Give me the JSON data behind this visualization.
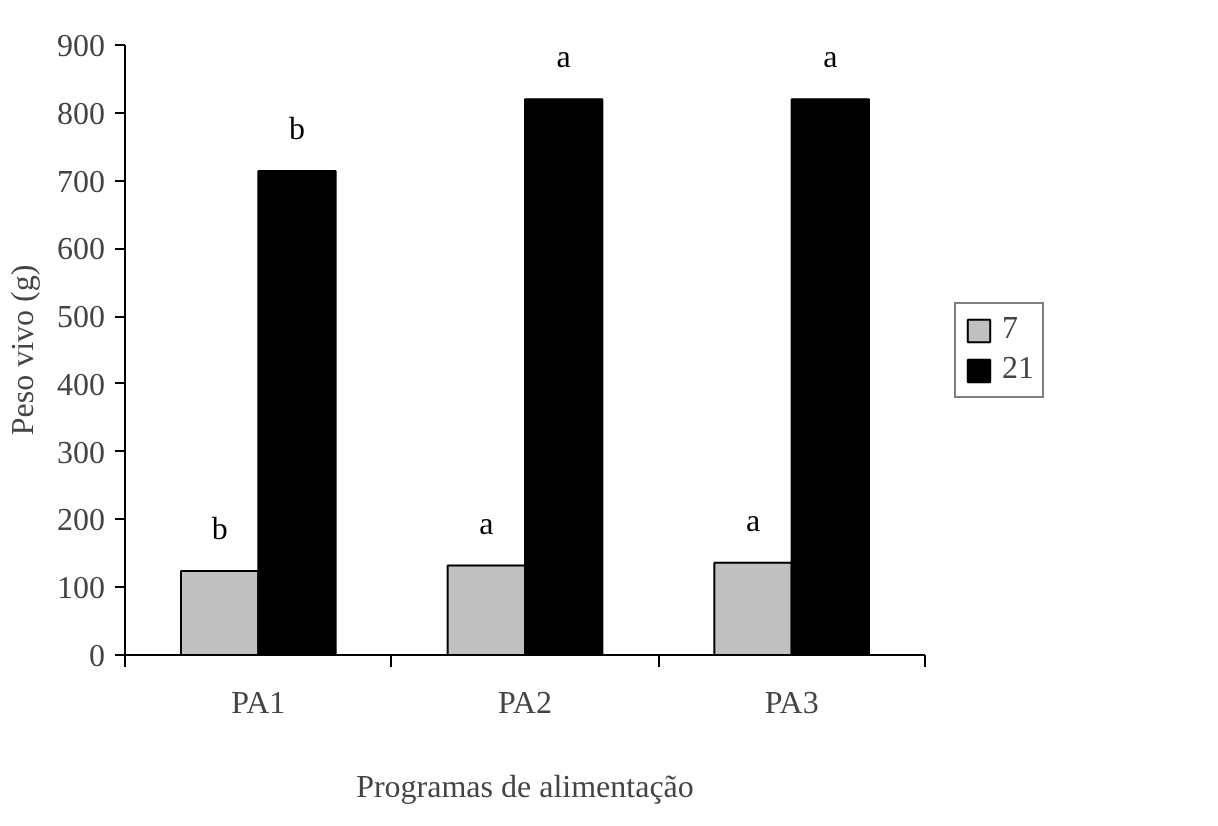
{
  "chart_data": {
    "type": "bar",
    "xlabel": "Programas de alimentação",
    "ylabel": "Peso vivo (g)",
    "categories": [
      "PA1",
      "PA2",
      "PA3"
    ],
    "series": [
      {
        "name": "7",
        "color": "#c0c0c0",
        "values": [
          124,
          132,
          136
        ],
        "value_labels": [
          "b",
          "a",
          "a"
        ]
      },
      {
        "name": "21",
        "color": "#000000",
        "values": [
          714,
          820,
          820
        ],
        "value_labels": [
          "b",
          "a",
          "a"
        ]
      }
    ],
    "ylim": [
      0,
      900
    ],
    "yticks": [
      0,
      100,
      200,
      300,
      400,
      500,
      600,
      700,
      800,
      900
    ],
    "legend": "right"
  }
}
